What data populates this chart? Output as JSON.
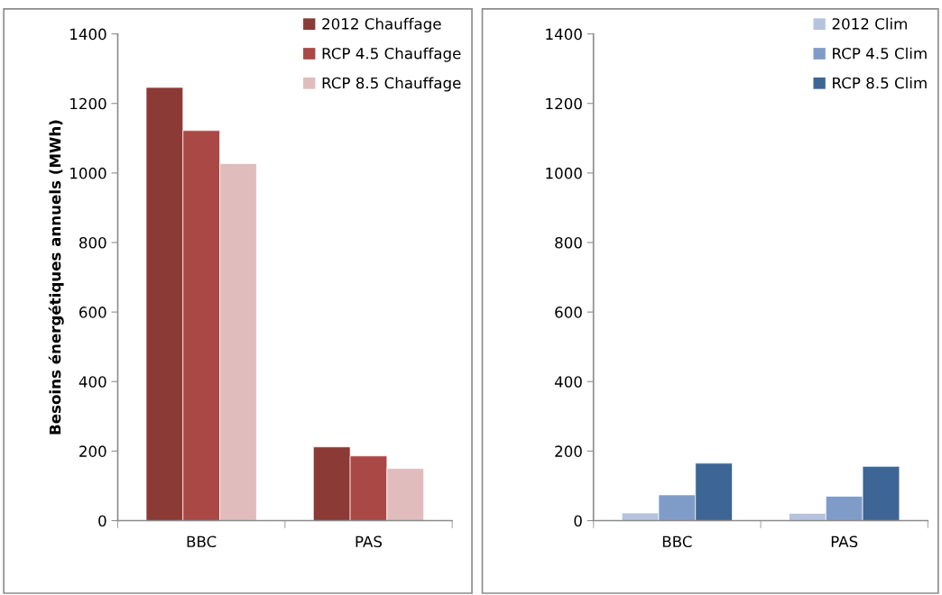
{
  "chart_data": [
    {
      "type": "bar",
      "ylabel": "Besoins énergétiques annuels (MWh)",
      "categories": [
        "BBC",
        "PAS"
      ],
      "series": [
        {
          "name": "2012 Chauffage",
          "color": "#8b3a36",
          "values": [
            1246,
            212
          ]
        },
        {
          "name": "RCP 4.5 Chauffage",
          "color": "#aa4845",
          "values": [
            1122,
            186
          ]
        },
        {
          "name": "RCP 8.5 Chauffage",
          "color": "#e0bcbd",
          "values": [
            1027,
            150
          ]
        }
      ],
      "ylim": [
        0,
        1400
      ],
      "yticks": [
        0,
        200,
        400,
        600,
        800,
        1000,
        1200,
        1400
      ],
      "grid": false,
      "legend": "top right"
    },
    {
      "type": "bar",
      "categories": [
        "BBC",
        "PAS"
      ],
      "series": [
        {
          "name": "2012 Clim",
          "color": "#b5c3de",
          "values": [
            22,
            21
          ]
        },
        {
          "name": "RCP 4.5 Clim",
          "color": "#7f9cc9",
          "values": [
            74,
            70
          ]
        },
        {
          "name": "RCP 8.5 Clim",
          "color": "#3d6595",
          "values": [
            165,
            156
          ]
        }
      ],
      "ylim": [
        0,
        1400
      ],
      "yticks": [
        0,
        200,
        400,
        600,
        800,
        1000,
        1200,
        1400
      ],
      "grid": false,
      "legend": "top right"
    }
  ]
}
